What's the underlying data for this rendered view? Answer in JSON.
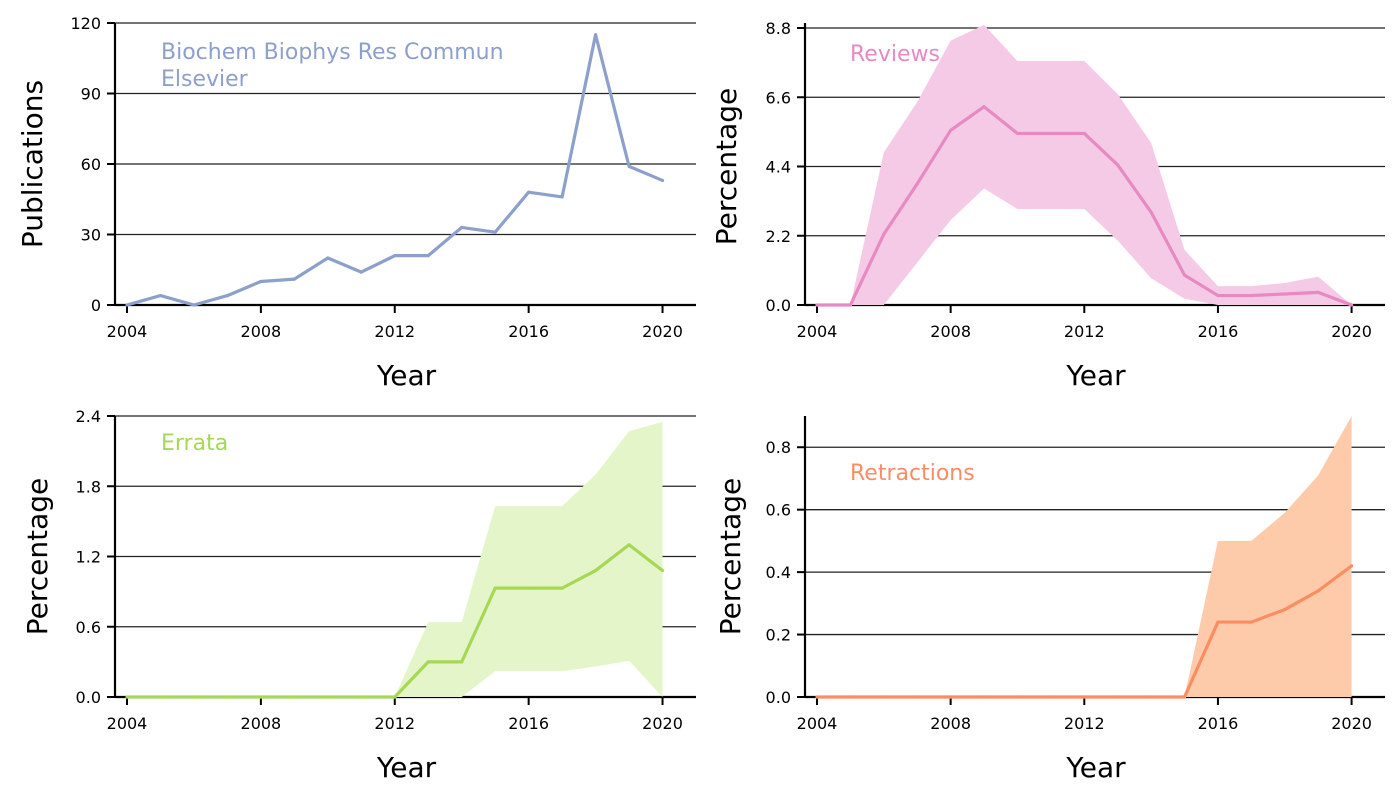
{
  "chart_data": [
    {
      "type": "line",
      "title": "",
      "xlabel": "Year",
      "ylabel": "Publications",
      "xlim": [
        2004,
        2021
      ],
      "ylim": [
        0,
        120
      ],
      "xticks": [
        2004,
        2008,
        2012,
        2016,
        2020
      ],
      "yticks": [
        "0",
        "30",
        "60",
        "90",
        "120"
      ],
      "grid": "horizontal",
      "color": "#8da0cb",
      "annotations": [
        "Biochem Biophys Res Commun",
        "Elsevier"
      ],
      "x": [
        2004,
        2005,
        2006,
        2007,
        2008,
        2009,
        2010,
        2011,
        2012,
        2013,
        2014,
        2015,
        2016,
        2017,
        2018,
        2019,
        2020
      ],
      "values": [
        0,
        4,
        0,
        4,
        10,
        11,
        20,
        14,
        21,
        21,
        33,
        31,
        48,
        46,
        115,
        59,
        53
      ]
    },
    {
      "type": "area",
      "title": "",
      "xlabel": "Year",
      "ylabel": "Percentage",
      "xlim": [
        2004,
        2021
      ],
      "ylim": [
        0,
        8.8
      ],
      "xticks": [
        2004,
        2008,
        2012,
        2016,
        2020
      ],
      "yticks": [
        "0.0",
        "2.2",
        "4.4",
        "6.6",
        "8.8"
      ],
      "grid": "horizontal",
      "color": "#e78ac3",
      "band_color": "#f5cae6",
      "annotations": [
        "Reviews"
      ],
      "x": [
        2004,
        2005,
        2006,
        2007,
        2008,
        2009,
        2010,
        2011,
        2012,
        2013,
        2014,
        2015,
        2016,
        2017,
        2018,
        2019,
        2020
      ],
      "values": [
        0,
        0,
        2.25,
        3.85,
        5.55,
        6.3,
        5.45,
        5.45,
        5.45,
        4.45,
        2.95,
        0.95,
        0.3,
        0.3,
        0.35,
        0.4,
        0
      ],
      "lower": [
        0,
        0,
        0,
        1.35,
        2.7,
        3.7,
        3.05,
        3.05,
        3.05,
        2.05,
        0.85,
        0.2,
        0,
        0,
        0,
        0,
        0
      ],
      "upper": [
        0,
        0,
        4.85,
        6.45,
        8.4,
        8.9,
        7.75,
        7.75,
        7.75,
        6.7,
        5.15,
        1.75,
        0.6,
        0.6,
        0.7,
        0.9,
        0
      ]
    },
    {
      "type": "area",
      "title": "",
      "xlabel": "Year",
      "ylabel": "Percentage",
      "xlim": [
        2004,
        2021
      ],
      "ylim": [
        0,
        2.4
      ],
      "xticks": [
        2004,
        2008,
        2012,
        2016,
        2020
      ],
      "yticks": [
        "0.0",
        "0.6",
        "1.2",
        "1.8",
        "2.4"
      ],
      "grid": "horizontal",
      "color": "#a6d854",
      "band_color": "#e4f5c9",
      "annotations": [
        "Errata"
      ],
      "x": [
        2004,
        2005,
        2006,
        2007,
        2008,
        2009,
        2010,
        2011,
        2012,
        2013,
        2014,
        2015,
        2016,
        2017,
        2018,
        2019,
        2020
      ],
      "values": [
        0,
        0,
        0,
        0,
        0,
        0,
        0,
        0,
        0,
        0.3,
        0.3,
        0.93,
        0.93,
        0.93,
        1.08,
        1.3,
        1.08
      ],
      "lower": [
        0,
        0,
        0,
        0,
        0,
        0,
        0,
        0,
        0,
        0,
        0,
        0.22,
        0.22,
        0.22,
        0.26,
        0.31,
        0
      ],
      "upper": [
        0,
        0,
        0,
        0,
        0,
        0,
        0,
        0,
        0,
        0.64,
        0.64,
        1.63,
        1.63,
        1.63,
        1.9,
        2.27,
        2.35
      ]
    },
    {
      "type": "area",
      "title": "",
      "xlabel": "Year",
      "ylabel": "Percentage",
      "xlim": [
        2004,
        2021
      ],
      "ylim": [
        0,
        0.9
      ],
      "xticks": [
        2004,
        2008,
        2012,
        2016,
        2020
      ],
      "yticks": [
        "0.0",
        "0.2",
        "0.4",
        "0.6",
        "0.8"
      ],
      "grid": "horizontal",
      "color": "#fc8d62",
      "band_color": "#fdcba9",
      "annotations": [
        "Retractions"
      ],
      "x": [
        2004,
        2005,
        2006,
        2007,
        2008,
        2009,
        2010,
        2011,
        2012,
        2013,
        2014,
        2015,
        2016,
        2017,
        2018,
        2019,
        2020
      ],
      "values": [
        0,
        0,
        0,
        0,
        0,
        0,
        0,
        0,
        0,
        0,
        0,
        0,
        0.24,
        0.24,
        0.28,
        0.34,
        0.42
      ],
      "lower": [
        0,
        0,
        0,
        0,
        0,
        0,
        0,
        0,
        0,
        0,
        0,
        0,
        0,
        0,
        0,
        0,
        0
      ],
      "upper": [
        0,
        0,
        0,
        0,
        0,
        0,
        0,
        0,
        0,
        0,
        0,
        0,
        0.5,
        0.5,
        0.59,
        0.71,
        0.9
      ]
    }
  ]
}
